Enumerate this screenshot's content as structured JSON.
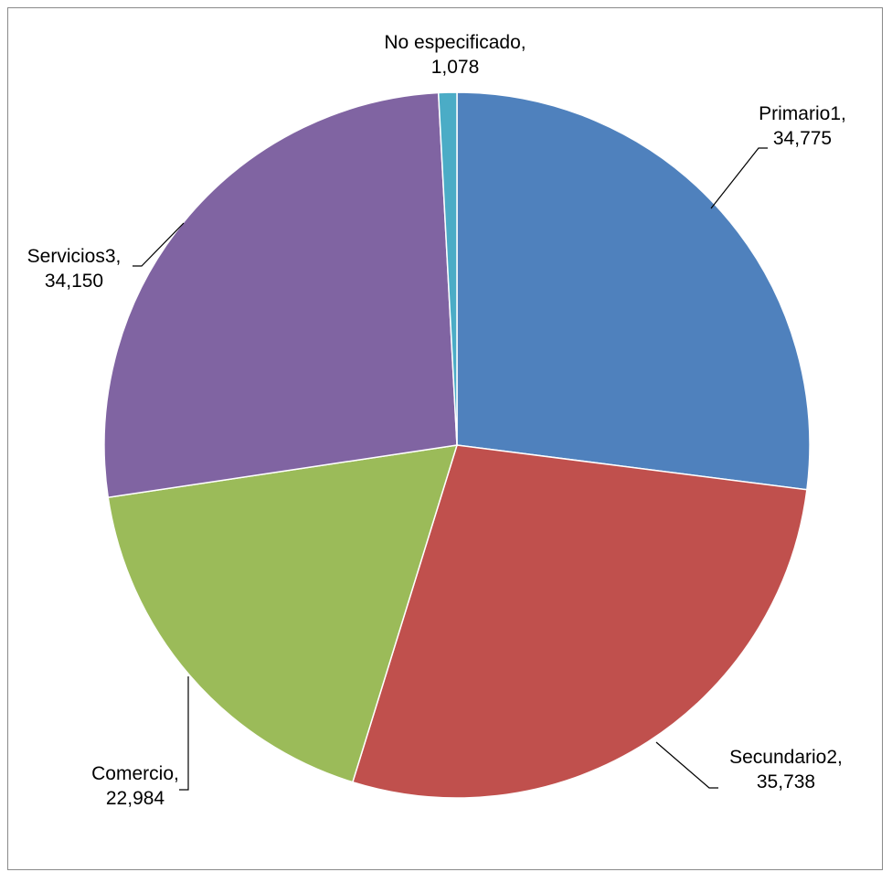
{
  "chart_data": {
    "type": "pie",
    "title": "",
    "start": "12 o'clock, clockwise",
    "legend": "none",
    "slices": [
      {
        "label": "Primario1,",
        "value": 34775,
        "value_text": "34,775",
        "color": "#4F81BD"
      },
      {
        "label": "Secundario2,",
        "value": 35738,
        "value_text": "35,738",
        "color": "#C0504D"
      },
      {
        "label": "Comercio,",
        "value": 22984,
        "value_text": "22,984",
        "color": "#9BBB59"
      },
      {
        "label": "Servicios3,",
        "value": 34150,
        "value_text": "34,150",
        "color": "#8064A2"
      },
      {
        "label": "No especificado,",
        "value": 1078,
        "value_text": "1,078",
        "color": "#4BACC6"
      }
    ]
  }
}
